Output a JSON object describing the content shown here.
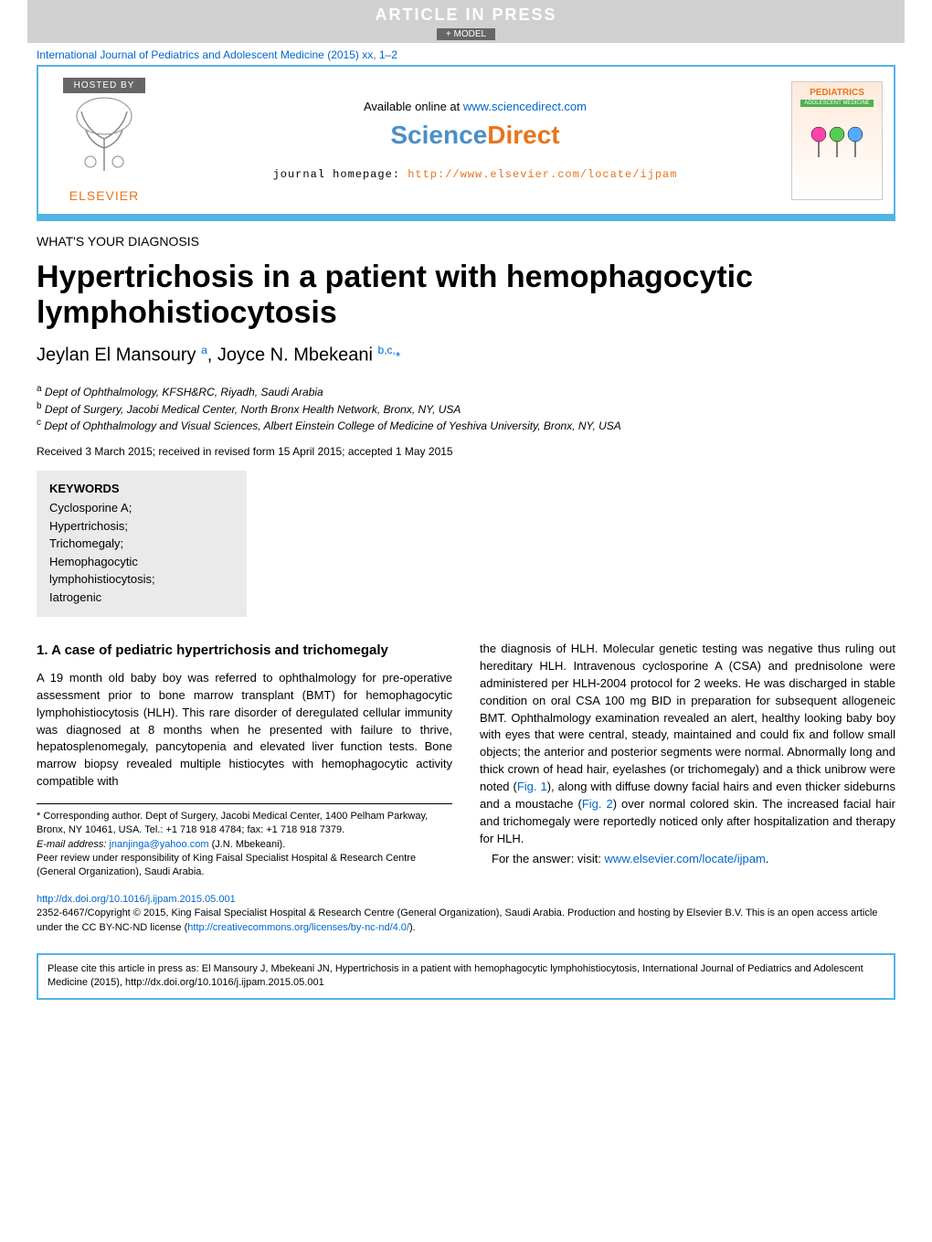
{
  "banner": {
    "aip": "ARTICLE IN PRESS",
    "model": "+ MODEL"
  },
  "journal_ref": {
    "text": "International Journal of Pediatrics and Adolescent Medicine (2015) xx, 1–2",
    "link_color": "#0066cc"
  },
  "header": {
    "hosted_by": "HOSTED BY",
    "elsevier": "ELSEVIER",
    "available_online": "Available online at ",
    "available_online_link": "www.sciencedirect.com",
    "sciencedirect_science": "Science",
    "sciencedirect_direct": "Direct",
    "journal_homepage_label": "journal homepage: ",
    "journal_homepage_link": "http://www.elsevier.com/locate/ijpam",
    "cover_title": "PEDIATRICS",
    "cover_sub": "ADOLESCENT MEDICINE"
  },
  "article": {
    "section_type": "WHAT'S YOUR DIAGNOSIS",
    "title": "Hypertrichosis in a patient with hemophagocytic lymphohistiocytosis",
    "authors_html": "Jeylan El Mansoury <sup>a</sup>, Joyce N. Mbekeani <sup>b,c,</sup><span class=\"star\">*</span>",
    "affiliations": {
      "a": "a Dept of Ophthalmology, KFSH&RC, Riyadh, Saudi Arabia",
      "b": "b Dept of Surgery, Jacobi Medical Center, North Bronx Health Network, Bronx, NY, USA",
      "c": "c Dept of Ophthalmology and Visual Sciences, Albert Einstein College of Medicine of Yeshiva University, Bronx, NY, USA"
    },
    "received": "Received 3 March 2015; received in revised form 15 April 2015; accepted 1 May 2015"
  },
  "keywords": {
    "title": "KEYWORDS",
    "items": [
      "Cyclosporine A;",
      "Hypertrichosis;",
      "Trichomegaly;",
      "Hemophagocytic lymphohistiocytosis;",
      "Iatrogenic"
    ]
  },
  "body": {
    "heading": "1. A case of pediatric hypertrichosis and trichomegaly",
    "col1": "A 19 month old baby boy was referred to ophthalmology for pre-operative assessment prior to bone marrow transplant (BMT) for hemophagocytic lymphohistiocytosis (HLH). This rare disorder of deregulated cellular immunity was diagnosed at 8 months when he presented with failure to thrive, hepatosplenomegaly, pancytopenia and elevated liver function tests. Bone marrow biopsy revealed multiple histiocytes with hemophagocytic activity compatible with",
    "col2_p1": "the diagnosis of HLH. Molecular genetic testing was negative thus ruling out hereditary HLH. Intravenous cyclosporine A (CSA) and prednisolone were administered per HLH-2004 protocol for 2 weeks. He was discharged in stable condition on oral CSA 100 mg BID in preparation for subsequent allogeneic BMT. Ophthalmology examination revealed an alert, healthy looking baby boy with eyes that were central, steady, maintained and could fix and follow small objects; the anterior and posterior segments were normal. Abnormally long and thick crown of head hair, eyelashes (or trichomegaly) and a thick unibrow were noted (Fig. 1), along with diffuse downy facial hairs and even thicker sideburns and a moustache (Fig. 2) over normal colored skin. The increased facial hair and trichomegaly were reportedly noticed only after hospitalization and therapy for HLH.",
    "col2_p2_pre": "For the answer: visit: ",
    "col2_p2_link": "www.elsevier.com/locate/ijpam",
    "col2_p2_post": ".",
    "fig1_label": "Fig. 1",
    "fig2_label": "Fig. 2"
  },
  "footnotes": {
    "corresponding": "* Corresponding author. Dept of Surgery, Jacobi Medical Center, 1400 Pelham Parkway, Bronx, NY 10461, USA. Tel.: +1 718 918 4784; fax: +1 718 918 7379.",
    "email_label": "E-mail address: ",
    "email": "jnanjinga@yahoo.com",
    "email_suffix": " (J.N. Mbekeani).",
    "peer_review": "Peer review under responsibility of King Faisal Specialist Hospital & Research Centre (General Organization), Saudi Arabia."
  },
  "doi": {
    "link": "http://dx.doi.org/10.1016/j.ijpam.2015.05.001",
    "copyright": "2352-6467/Copyright © 2015, King Faisal Specialist Hospital & Research Centre (General Organization), Saudi Arabia. Production and hosting by Elsevier B.V. This is an open access article under the CC BY-NC-ND license (",
    "cc_link": "http://creativecommons.org/licenses/by-nc-nd/4.0/",
    "copyright_end": ")."
  },
  "cite": {
    "text": "Please cite this article in press as: El Mansoury J, Mbekeani JN, Hypertrichosis in a patient with hemophagocytic lymphohistiocytosis, International Journal of Pediatrics and Adolescent Medicine (2015), http://dx.doi.org/10.1016/j.ijpam.2015.05.001"
  },
  "colors": {
    "blue_border": "#52b5e5",
    "link": "#0066cc",
    "orange": "#e8741c",
    "sd_blue": "#4a8fc7",
    "grey_bg": "#eaeaea",
    "banner_grey": "#d0d0d0"
  }
}
